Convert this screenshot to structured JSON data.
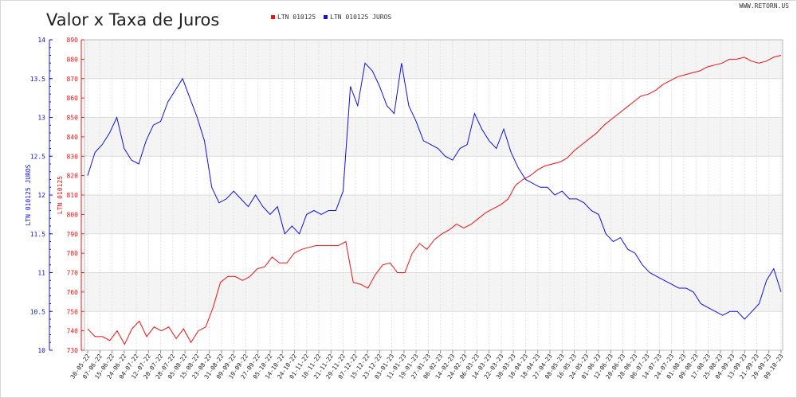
{
  "title": "Valor x Taxa de Juros",
  "watermark": "WWW.RETORN.US",
  "legend": [
    {
      "name": "LTN 010125",
      "color": "#ee1111"
    },
    {
      "name": "LTN 010125 JUROS",
      "color": "#1111dd"
    }
  ],
  "chart_data": {
    "type": "line",
    "title": "Valor x Taxa de Juros",
    "xlabel": "",
    "y_left_label": "LTN 010125 JUROS",
    "y_left2_label": "LTN 010125",
    "grid": true,
    "legend_position": "top",
    "x_ticks": [
      "30-05-22",
      "07-06-22",
      "15-06-22",
      "24-06-22",
      "04-07-22",
      "12-07-22",
      "20-07-22",
      "28-07-22",
      "05-08-22",
      "15-08-22",
      "23-08-22",
      "31-08-22",
      "09-09-22",
      "19-09-22",
      "27-09-22",
      "05-10-22",
      "14-10-22",
      "24-10-22",
      "01-11-22",
      "10-11-22",
      "21-11-22",
      "29-11-22",
      "07-12-22",
      "15-12-22",
      "23-12-22",
      "03-01-23",
      "11-01-23",
      "19-01-23",
      "27-01-23",
      "06-02-23",
      "14-02-23",
      "24-02-23",
      "06-03-23",
      "14-03-23",
      "22-03-23",
      "30-03-23",
      "10-04-23",
      "18-04-23",
      "27-04-23",
      "08-05-23",
      "16-05-23",
      "24-05-23",
      "01-06-23",
      "12-06-23",
      "20-06-23",
      "28-06-23",
      "06-07-23",
      "14-07-23",
      "24-07-23",
      "01-08-23",
      "09-08-23",
      "17-08-23",
      "25-08-23",
      "04-09-23",
      "13-09-23",
      "21-09-23",
      "29-09-23",
      "09-10-23"
    ],
    "y_juros_ticks": [
      "14",
      "13.5",
      "13",
      "12.5",
      "12",
      "11.5",
      "11",
      "10.5",
      "10"
    ],
    "y_valor_ticks": [
      "890",
      "880",
      "870",
      "860",
      "850",
      "840",
      "830",
      "820",
      "810",
      "800",
      "790",
      "780",
      "770",
      "760",
      "750",
      "740",
      "730"
    ],
    "y_juros_range": [
      10,
      14
    ],
    "y_valor_range": [
      730,
      890
    ],
    "series": [
      {
        "name": "LTN 010125",
        "axis": "valor",
        "color": "#ee1111",
        "values": [
          741,
          737,
          737,
          735,
          740,
          733,
          741,
          745,
          737,
          742,
          740,
          742,
          736,
          741,
          734,
          740,
          742,
          752,
          765,
          768,
          768,
          766,
          768,
          772,
          773,
          778,
          775,
          775,
          780,
          782,
          783,
          784,
          784,
          784,
          784,
          786,
          765,
          764,
          762,
          769,
          774,
          775,
          770,
          770,
          780,
          785,
          782,
          787,
          790,
          792,
          795,
          793,
          795,
          798,
          801,
          803,
          805,
          808,
          815,
          818,
          820,
          823,
          825,
          826,
          827,
          829,
          833,
          836,
          839,
          842,
          846,
          849,
          852,
          855,
          858,
          861,
          862,
          864,
          867,
          869,
          871,
          872,
          873,
          874,
          876,
          877,
          878,
          880,
          880,
          881,
          879,
          878,
          879,
          881,
          882
        ]
      },
      {
        "name": "LTN 010125 JUROS",
        "axis": "juros",
        "color": "#1111dd",
        "values": [
          12.25,
          12.55,
          12.65,
          12.8,
          13.0,
          12.6,
          12.45,
          12.4,
          12.7,
          12.9,
          12.95,
          13.2,
          13.35,
          13.5,
          13.25,
          13.0,
          12.7,
          12.1,
          11.9,
          11.95,
          12.05,
          11.95,
          11.85,
          12.0,
          11.85,
          11.75,
          11.85,
          11.5,
          11.6,
          11.5,
          11.75,
          11.8,
          11.75,
          11.8,
          11.8,
          12.05,
          13.4,
          13.15,
          13.7,
          13.6,
          13.4,
          13.15,
          13.05,
          13.7,
          13.15,
          12.95,
          12.7,
          12.65,
          12.6,
          12.5,
          12.45,
          12.6,
          12.65,
          13.05,
          12.85,
          12.7,
          12.6,
          12.85,
          12.55,
          12.35,
          12.2,
          12.15,
          12.1,
          12.1,
          12.0,
          12.05,
          11.95,
          11.95,
          11.9,
          11.8,
          11.75,
          11.5,
          11.4,
          11.45,
          11.3,
          11.25,
          11.1,
          11.0,
          10.95,
          10.9,
          10.85,
          10.8,
          10.8,
          10.75,
          10.6,
          10.55,
          10.5,
          10.45,
          10.5,
          10.5,
          10.4,
          10.5,
          10.6,
          10.9,
          11.05,
          10.75
        ]
      }
    ]
  }
}
